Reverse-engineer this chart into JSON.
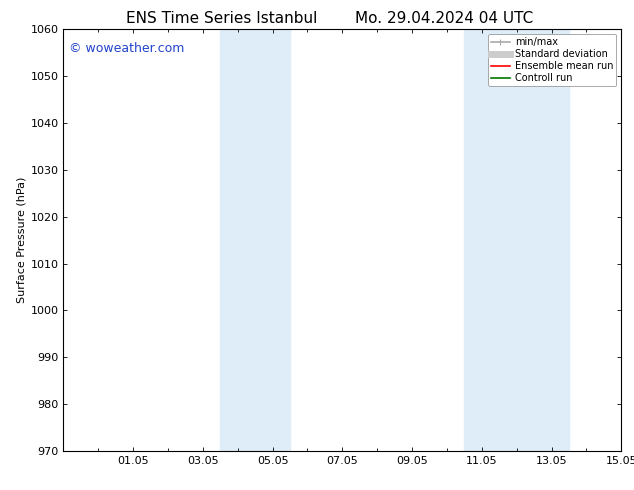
{
  "title_left": "ENS Time Series Istanbul",
  "title_right": "Mo. 29.04.2024 04 UTC",
  "ylabel": "Surface Pressure (hPa)",
  "ylim": [
    970,
    1060
  ],
  "yticks": [
    970,
    980,
    990,
    1000,
    1010,
    1020,
    1030,
    1040,
    1050,
    1060
  ],
  "xtick_labels": [
    "01.05",
    "03.05",
    "05.05",
    "07.05",
    "09.05",
    "11.05",
    "13.05",
    "15.05"
  ],
  "xtick_positions": [
    2,
    4,
    6,
    8,
    10,
    12,
    14,
    16
  ],
  "shaded_regions": [
    {
      "xstart": 4.5,
      "xend": 6.5,
      "color": "#deedf8"
    },
    {
      "xstart": 11.5,
      "xend": 14.5,
      "color": "#deedf8"
    }
  ],
  "watermark_text": "© woweather.com",
  "watermark_color": "#2244cc",
  "legend_entries": [
    {
      "label": "min/max",
      "color": "#aaaaaa",
      "lw": 1.2
    },
    {
      "label": "Standard deviation",
      "color": "#cccccc",
      "lw": 5
    },
    {
      "label": "Ensemble mean run",
      "color": "#ff0000",
      "lw": 1.2
    },
    {
      "label": "Controll run",
      "color": "#007700",
      "lw": 1.2
    }
  ],
  "bg_color": "#ffffff",
  "title_fontsize": 11,
  "axis_fontsize": 8,
  "tick_fontsize": 8,
  "watermark_fontsize": 9
}
